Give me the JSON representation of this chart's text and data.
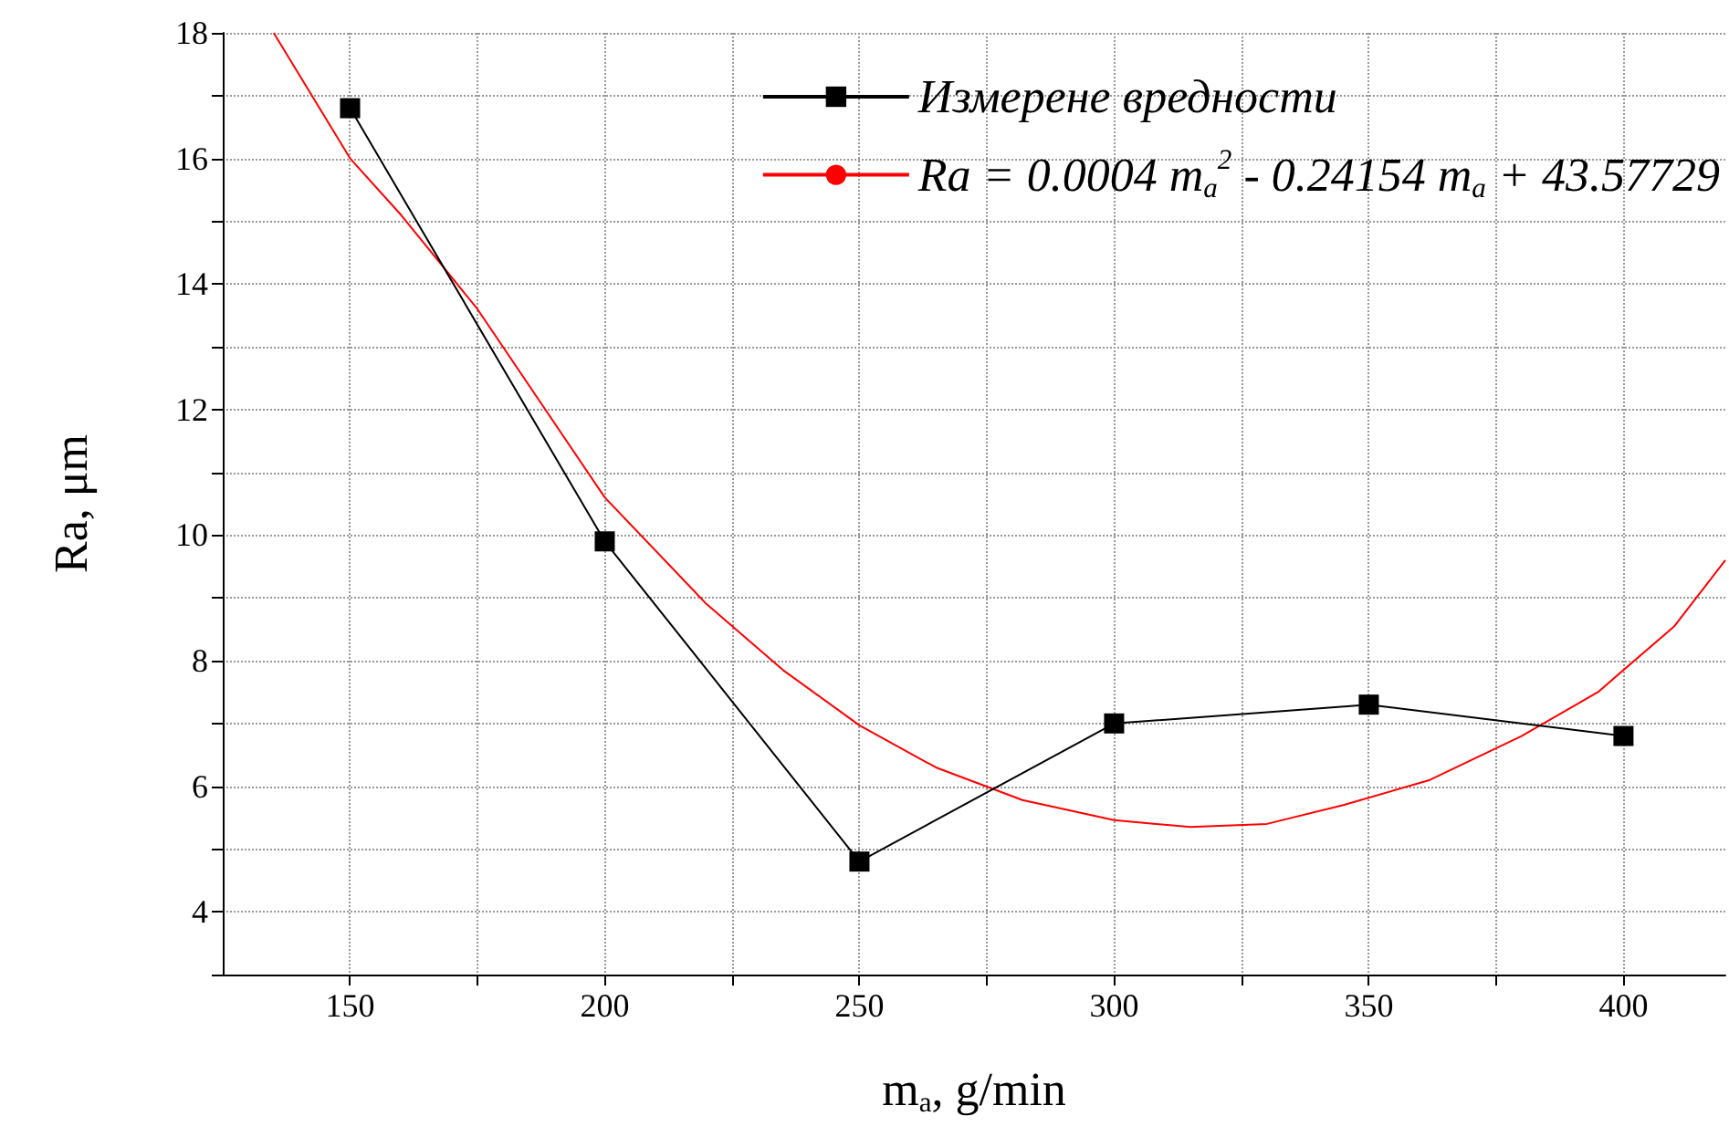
{
  "chart_data": {
    "type": "line",
    "xlabel": "m$_{a}$, g/min",
    "ylabel": "Ra, μm",
    "xlim": [
      125,
      420
    ],
    "ylim": [
      3,
      18
    ],
    "xticks": [
      150,
      {
        "value": 175,
        "label": null
      },
      200,
      {
        "value": 225,
        "label": null
      },
      250,
      {
        "value": 275,
        "label": null
      },
      300,
      {
        "value": 325,
        "label": null
      },
      350,
      {
        "value": 375,
        "label": null
      },
      400
    ],
    "yticks": [
      {
        "value": 3,
        "label": null
      },
      4,
      {
        "value": 5,
        "label": null
      },
      6,
      {
        "value": 7,
        "label": null
      },
      8,
      {
        "value": 9,
        "label": null
      },
      10,
      {
        "value": 11,
        "label": null
      },
      12,
      {
        "value": 13,
        "label": null
      },
      14,
      {
        "value": 15,
        "label": null
      },
      16,
      {
        "value": 17,
        "label": null
      },
      18
    ],
    "grid": true,
    "legend": "top right",
    "series": [
      {
        "name": "Измерене вредности",
        "color": "#000000",
        "marker": "square",
        "x": [
          150,
          200,
          250,
          300,
          350,
          400
        ],
        "values": [
          16.8,
          9.9,
          4.8,
          7.0,
          7.3,
          6.8
        ]
      },
      {
        "name": "Ra = 0.0004 m$_{a}$$^{2}$ - 0.24154 m$_{a}$ + 43.57729",
        "color": "#ff0000",
        "marker": "none",
        "x": [
          135,
          150,
          160,
          175,
          200,
          220,
          235,
          250,
          265,
          282,
          300,
          315,
          330,
          345,
          362,
          380,
          395,
          410,
          420
        ],
        "values": [
          18.0,
          16.0,
          15.1,
          13.6,
          10.6,
          8.9,
          7.85,
          6.97,
          6.3,
          5.78,
          5.46,
          5.35,
          5.4,
          5.7,
          6.1,
          6.8,
          7.5,
          8.55,
          9.6
        ]
      }
    ]
  }
}
